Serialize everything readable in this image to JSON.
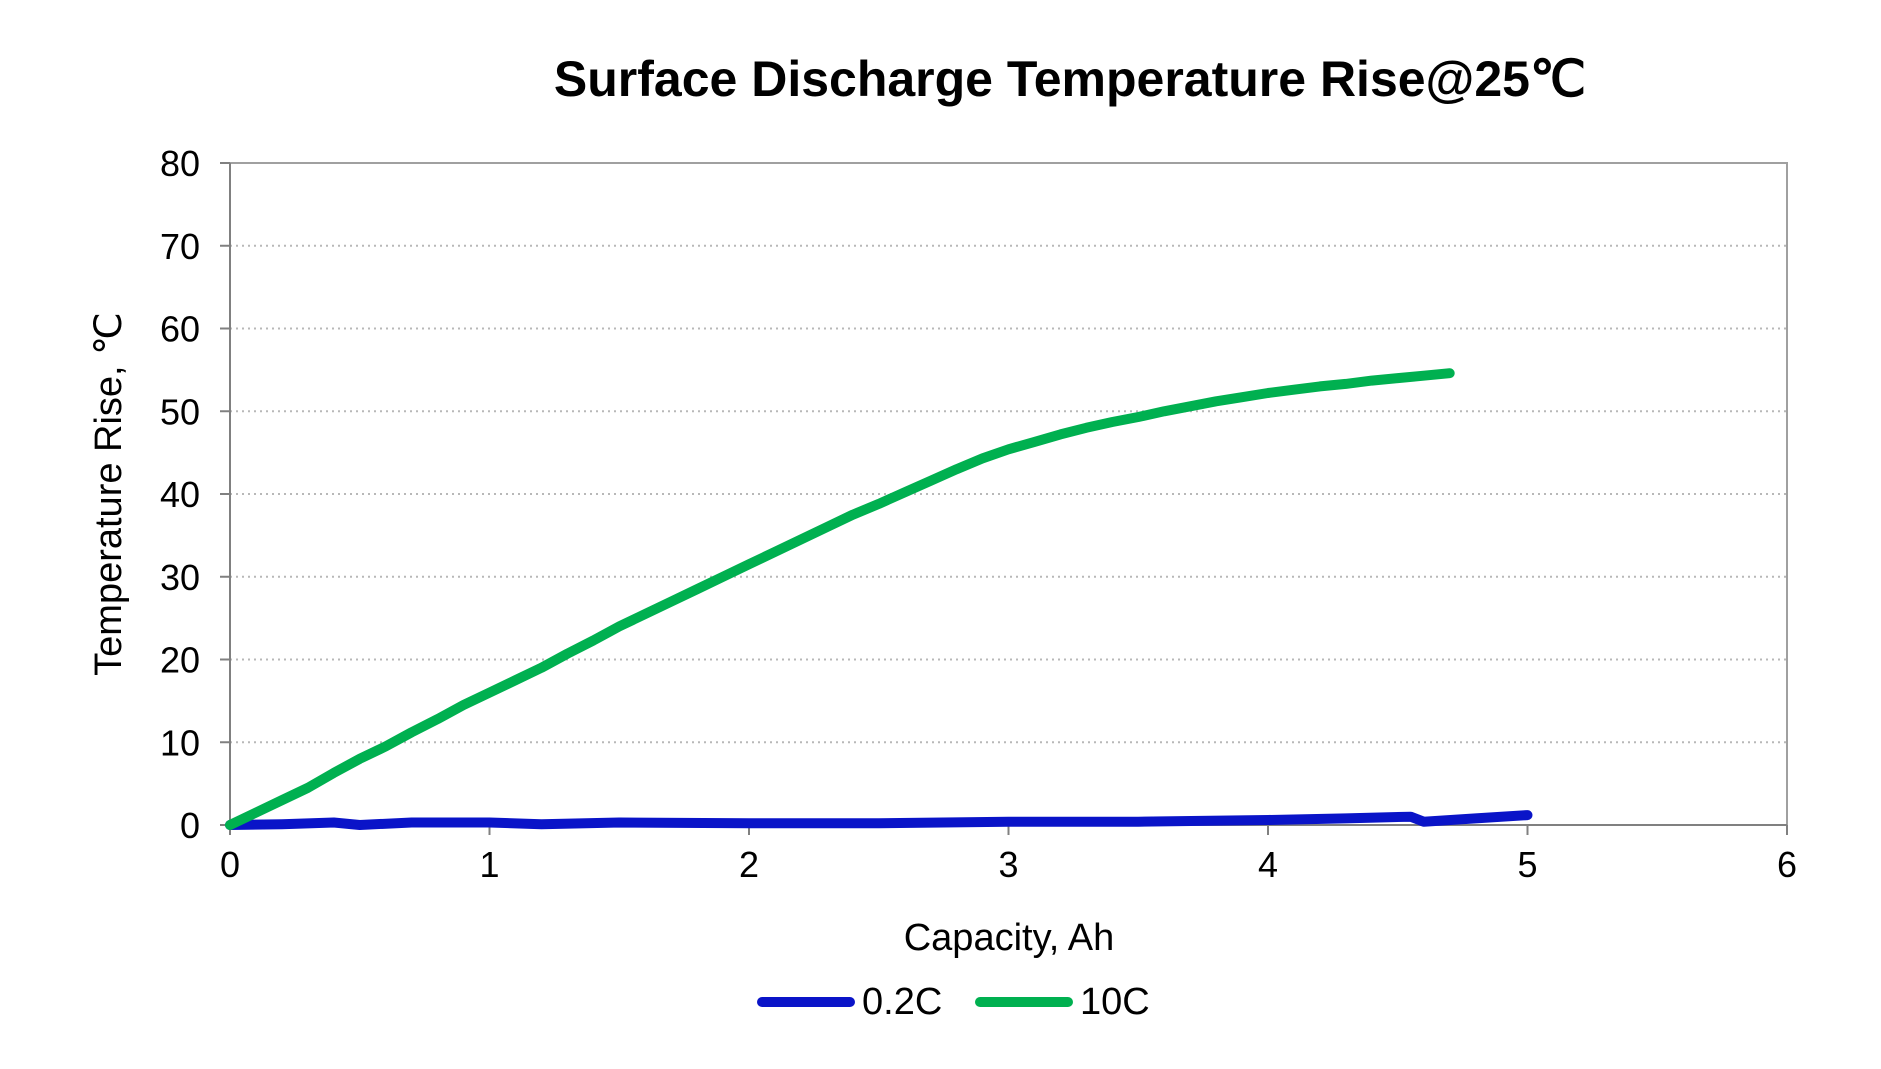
{
  "chart_data": {
    "type": "line",
    "title": "Surface  Discharge Temperature Rise@25℃",
    "xlabel": "Capacity, Ah",
    "ylabel": "Temperature Rise, ℃",
    "xlim": [
      0,
      6
    ],
    "ylim": [
      0,
      80
    ],
    "x_ticks": [
      "0",
      "1",
      "2",
      "3",
      "4",
      "5",
      "6"
    ],
    "y_ticks": [
      "0",
      "10",
      "20",
      "30",
      "40",
      "50",
      "60",
      "70",
      "80"
    ],
    "grid": "horizontal dotted",
    "legend_position": "bottom",
    "series": [
      {
        "name": "0.2C",
        "color": "#0a14c8",
        "x": [
          0,
          0.2,
          0.4,
          0.5,
          0.7,
          1.0,
          1.2,
          1.5,
          2.0,
          2.5,
          3.0,
          3.5,
          4.0,
          4.3,
          4.55,
          4.6,
          4.8,
          5.0
        ],
        "y": [
          0,
          0.1,
          0.3,
          0.0,
          0.3,
          0.3,
          0.1,
          0.3,
          0.2,
          0.2,
          0.4,
          0.4,
          0.6,
          0.8,
          1.0,
          0.4,
          0.8,
          1.2
        ]
      },
      {
        "name": "10C",
        "color": "#00b050",
        "x": [
          0,
          0.1,
          0.2,
          0.3,
          0.4,
          0.5,
          0.6,
          0.7,
          0.8,
          0.9,
          1.0,
          1.1,
          1.2,
          1.3,
          1.4,
          1.5,
          1.6,
          1.7,
          1.8,
          1.9,
          2.0,
          2.1,
          2.2,
          2.3,
          2.4,
          2.5,
          2.6,
          2.7,
          2.8,
          2.9,
          3.0,
          3.1,
          3.2,
          3.3,
          3.4,
          3.5,
          3.6,
          3.7,
          3.8,
          3.9,
          4.0,
          4.1,
          4.2,
          4.3,
          4.4,
          4.5,
          4.6,
          4.7
        ],
        "y": [
          0,
          1.5,
          3.0,
          4.5,
          6.3,
          8.0,
          9.5,
          11.2,
          12.8,
          14.5,
          16.0,
          17.5,
          19.0,
          20.7,
          22.3,
          24.0,
          25.5,
          27.0,
          28.5,
          30.0,
          31.5,
          33.0,
          34.5,
          36.0,
          37.5,
          38.8,
          40.2,
          41.6,
          43.0,
          44.3,
          45.4,
          46.3,
          47.2,
          48.0,
          48.7,
          49.3,
          50.0,
          50.6,
          51.2,
          51.7,
          52.2,
          52.6,
          53.0,
          53.3,
          53.7,
          54.0,
          54.3,
          54.6
        ]
      }
    ]
  }
}
